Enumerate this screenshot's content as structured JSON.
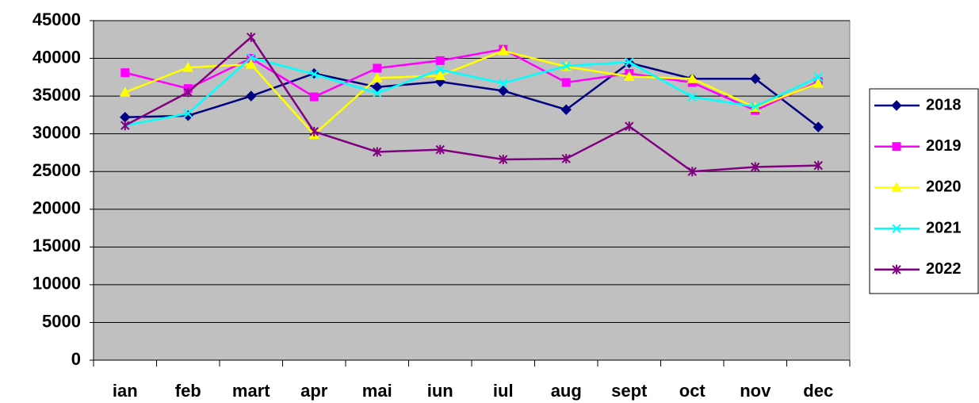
{
  "chart_data": {
    "type": "line",
    "categories": [
      "ian",
      "feb",
      "mart",
      "apr",
      "mai",
      "iun",
      "iul",
      "aug",
      "sept",
      "oct",
      "nov",
      "dec"
    ],
    "series": [
      {
        "name": "2018",
        "color": "#000080",
        "marker": "diamond",
        "values": [
          32200,
          32400,
          35000,
          38000,
          36200,
          36900,
          35700,
          33200,
          39400,
          37300,
          37300,
          30900
        ]
      },
      {
        "name": "2019",
        "color": "#ff00ff",
        "marker": "square",
        "values": [
          38100,
          36000,
          40000,
          34900,
          38700,
          39700,
          41200,
          36800,
          38000,
          36800,
          33100,
          36900
        ]
      },
      {
        "name": "2020",
        "color": "#ffff00",
        "marker": "triangle",
        "values": [
          35500,
          38800,
          39200,
          29900,
          37400,
          37700,
          41000,
          38900,
          37600,
          37300,
          33500,
          36700
        ]
      },
      {
        "name": "2021",
        "color": "#00ffff",
        "marker": "x",
        "values": [
          31100,
          32700,
          40100,
          37900,
          35400,
          38500,
          36700,
          39000,
          39500,
          34900,
          33600,
          37500
        ]
      },
      {
        "name": "2022",
        "color": "#800080",
        "marker": "star",
        "values": [
          31100,
          35500,
          42800,
          30300,
          27600,
          27900,
          26600,
          26700,
          31000,
          25000,
          25600,
          25800
        ]
      }
    ],
    "ylim": [
      0,
      45000
    ],
    "yticks": [
      0,
      5000,
      10000,
      15000,
      20000,
      25000,
      30000,
      35000,
      40000,
      45000
    ],
    "grid": true,
    "legend": "right"
  }
}
